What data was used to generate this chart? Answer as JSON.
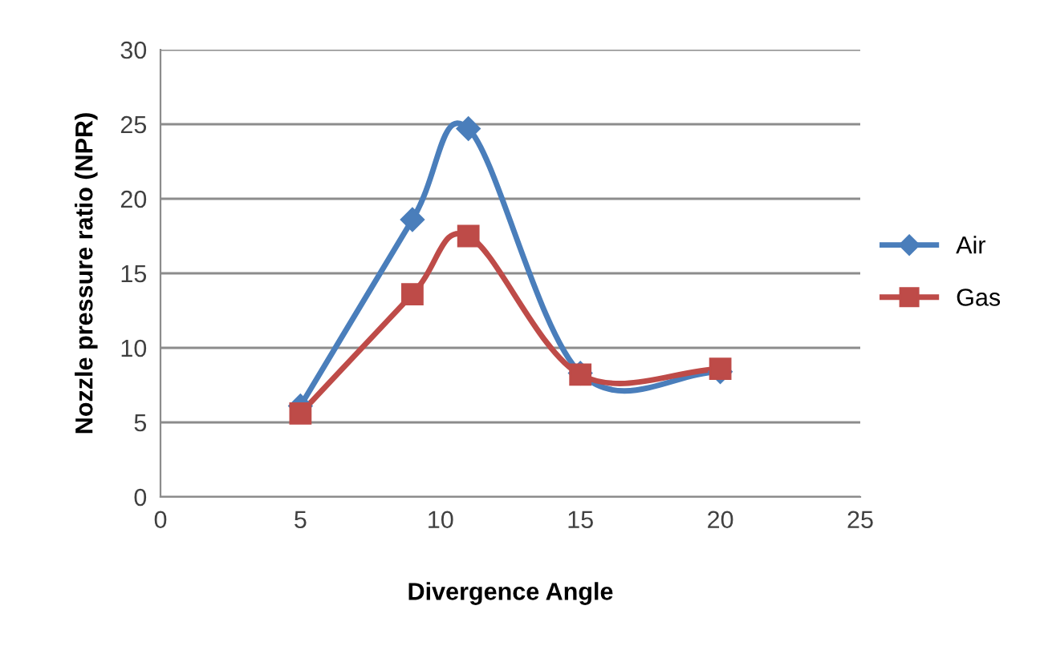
{
  "chart_data": {
    "type": "line",
    "xlabel": "Divergence Angle",
    "ylabel": "Nozzle pressure ratio (NPR)",
    "x": [
      5,
      9,
      11,
      15,
      20
    ],
    "series": [
      {
        "name": "Air",
        "color": "#4a7ebb",
        "marker": "diamond",
        "values": [
          6.1,
          18.6,
          24.7,
          8.3,
          8.4
        ]
      },
      {
        "name": "Gas",
        "color": "#be4b48",
        "marker": "square",
        "values": [
          5.6,
          13.6,
          17.5,
          8.2,
          8.6
        ]
      }
    ],
    "xlim": [
      0,
      25
    ],
    "xticks": [
      0,
      5,
      10,
      15,
      20,
      25
    ],
    "ylim": [
      0,
      30
    ],
    "yticks": [
      0,
      5,
      10,
      15,
      20,
      25,
      30
    ],
    "grid": "y",
    "legend": "right",
    "line_style": "solid"
  }
}
